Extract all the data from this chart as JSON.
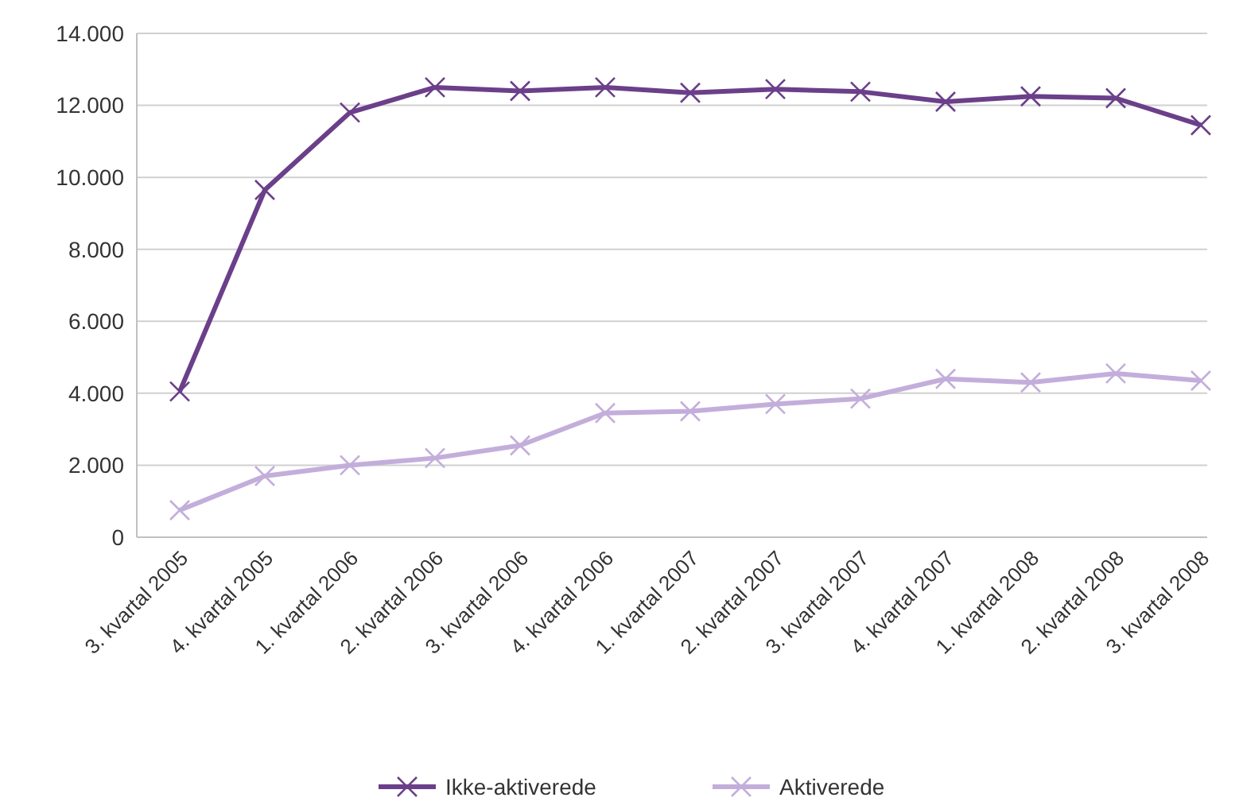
{
  "chart_data": {
    "type": "line",
    "categories": [
      "3. kvartal 2005",
      "4. kvartal 2005",
      "1. kvartal 2006",
      "2. kvartal 2006",
      "3. kvartal 2006",
      "4. kvartal 2006",
      "1. kvartal 2007",
      "2. kvartal 2007",
      "3. kvartal 2007",
      "4. kvartal 2007",
      "1. kvartal 2008",
      "2. kvartal 2008",
      "3. kvartal 2008"
    ],
    "series": [
      {
        "name": "Ikke-aktiverede",
        "color": "#6b3f8a",
        "marker": "cross",
        "values": [
          4050,
          9650,
          11800,
          12500,
          12400,
          12500,
          12350,
          12450,
          12380,
          12100,
          12250,
          12200,
          11450
        ]
      },
      {
        "name": "Aktiverede",
        "color": "#c3aedb",
        "marker": "cross",
        "values": [
          750,
          1700,
          2000,
          2200,
          2550,
          3450,
          3500,
          3700,
          3850,
          4400,
          4300,
          4550,
          4350
        ]
      }
    ],
    "ylim": [
      0,
      14000
    ],
    "yticks": [
      {
        "value": 0,
        "label": "0"
      },
      {
        "value": 2000,
        "label": "2.000"
      },
      {
        "value": 4000,
        "label": "4.000"
      },
      {
        "value": 6000,
        "label": "6.000"
      },
      {
        "value": 8000,
        "label": "8.000"
      },
      {
        "value": 10000,
        "label": "10.000"
      },
      {
        "value": 12000,
        "label": "12.000"
      },
      {
        "value": 14000,
        "label": "14.000"
      }
    ],
    "grid": "y",
    "legend": "bottom",
    "line_style": "solid"
  }
}
